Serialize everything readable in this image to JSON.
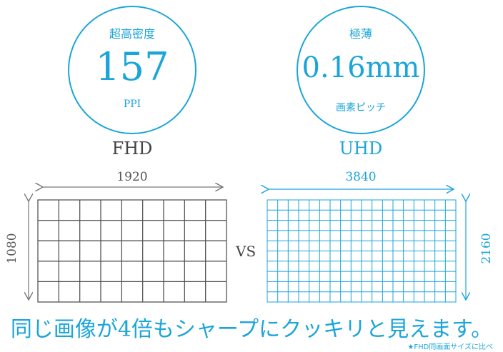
{
  "left_circle": {
    "top": "超高密度",
    "value": "157",
    "sub": "PPI"
  },
  "right_circle": {
    "top": "極薄",
    "value": "0.16mm",
    "sub": "画素ピッチ"
  },
  "fhd": {
    "label": "FHD",
    "width": "1920",
    "height": "1080"
  },
  "uhd": {
    "label": "UHD",
    "width": "3840",
    "height": "2160"
  },
  "vs": "VS",
  "headline": "同じ画像が4倍もシャープにクッキリと見えます。",
  "footnote": "★FHD同画面サイズに比べ",
  "colors": {
    "accent": "#1ba5d8",
    "dark": "#555555"
  }
}
